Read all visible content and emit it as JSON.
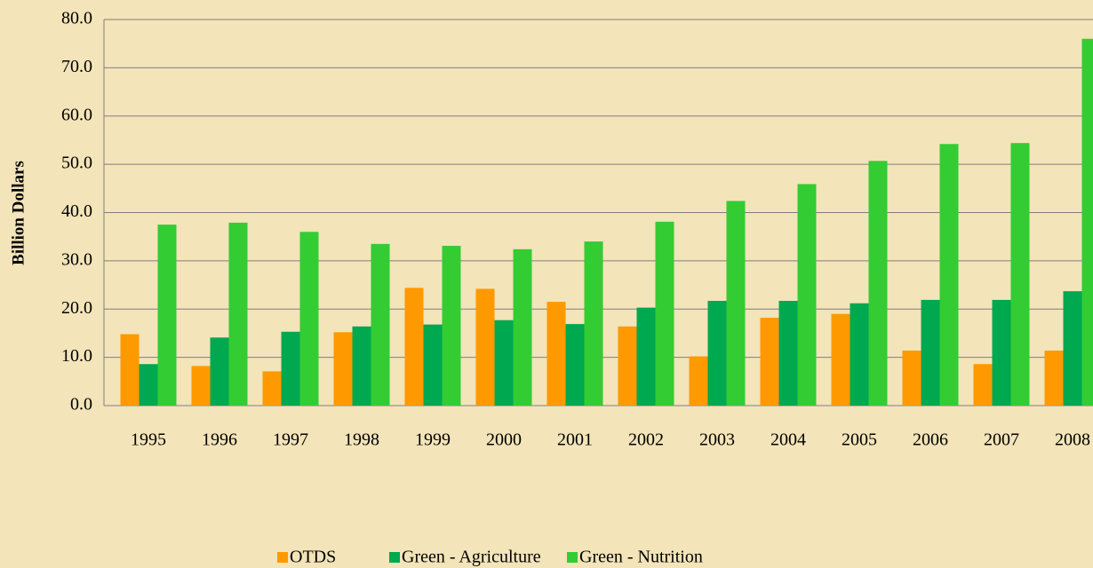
{
  "chart_data": {
    "type": "bar",
    "y_label": "Billion Dollars",
    "categories": [
      "1995",
      "1996",
      "1997",
      "1998",
      "1999",
      "2000",
      "2001",
      "2002",
      "2003",
      "2004",
      "2005",
      "2006",
      "2007",
      "2008"
    ],
    "series": [
      {
        "name": "OTDS",
        "color": "#ff9900",
        "values": [
          14.8,
          8.2,
          7.1,
          15.2,
          24.4,
          24.2,
          21.5,
          16.4,
          10.2,
          18.2,
          19.0,
          11.4,
          8.6,
          11.4
        ]
      },
      {
        "name": "Green - Agriculture",
        "color": "#00a84f",
        "values": [
          8.6,
          14.1,
          15.3,
          16.4,
          16.8,
          17.7,
          16.9,
          20.3,
          21.7,
          21.7,
          21.2,
          21.9,
          21.9,
          23.7
        ]
      },
      {
        "name": "Green - Nutrition",
        "color": "#33cc33",
        "values": [
          37.5,
          37.9,
          36.0,
          33.5,
          33.1,
          32.4,
          34.0,
          38.1,
          42.4,
          45.9,
          50.7,
          54.2,
          54.4,
          76.0
        ]
      }
    ],
    "ylim": [
      0,
      80
    ],
    "yticks": [
      {
        "value": 0,
        "label": "0.0"
      },
      {
        "value": 10,
        "label": "10.0"
      },
      {
        "value": 20,
        "label": "20.0"
      },
      {
        "value": 30,
        "label": "30.0"
      },
      {
        "value": 40,
        "label": "40.0"
      },
      {
        "value": 50,
        "label": "50.0"
      },
      {
        "value": 60,
        "label": "60.0"
      },
      {
        "value": 70,
        "label": "70.0"
      },
      {
        "value": 80,
        "label": "80.0"
      }
    ],
    "grid": true
  }
}
